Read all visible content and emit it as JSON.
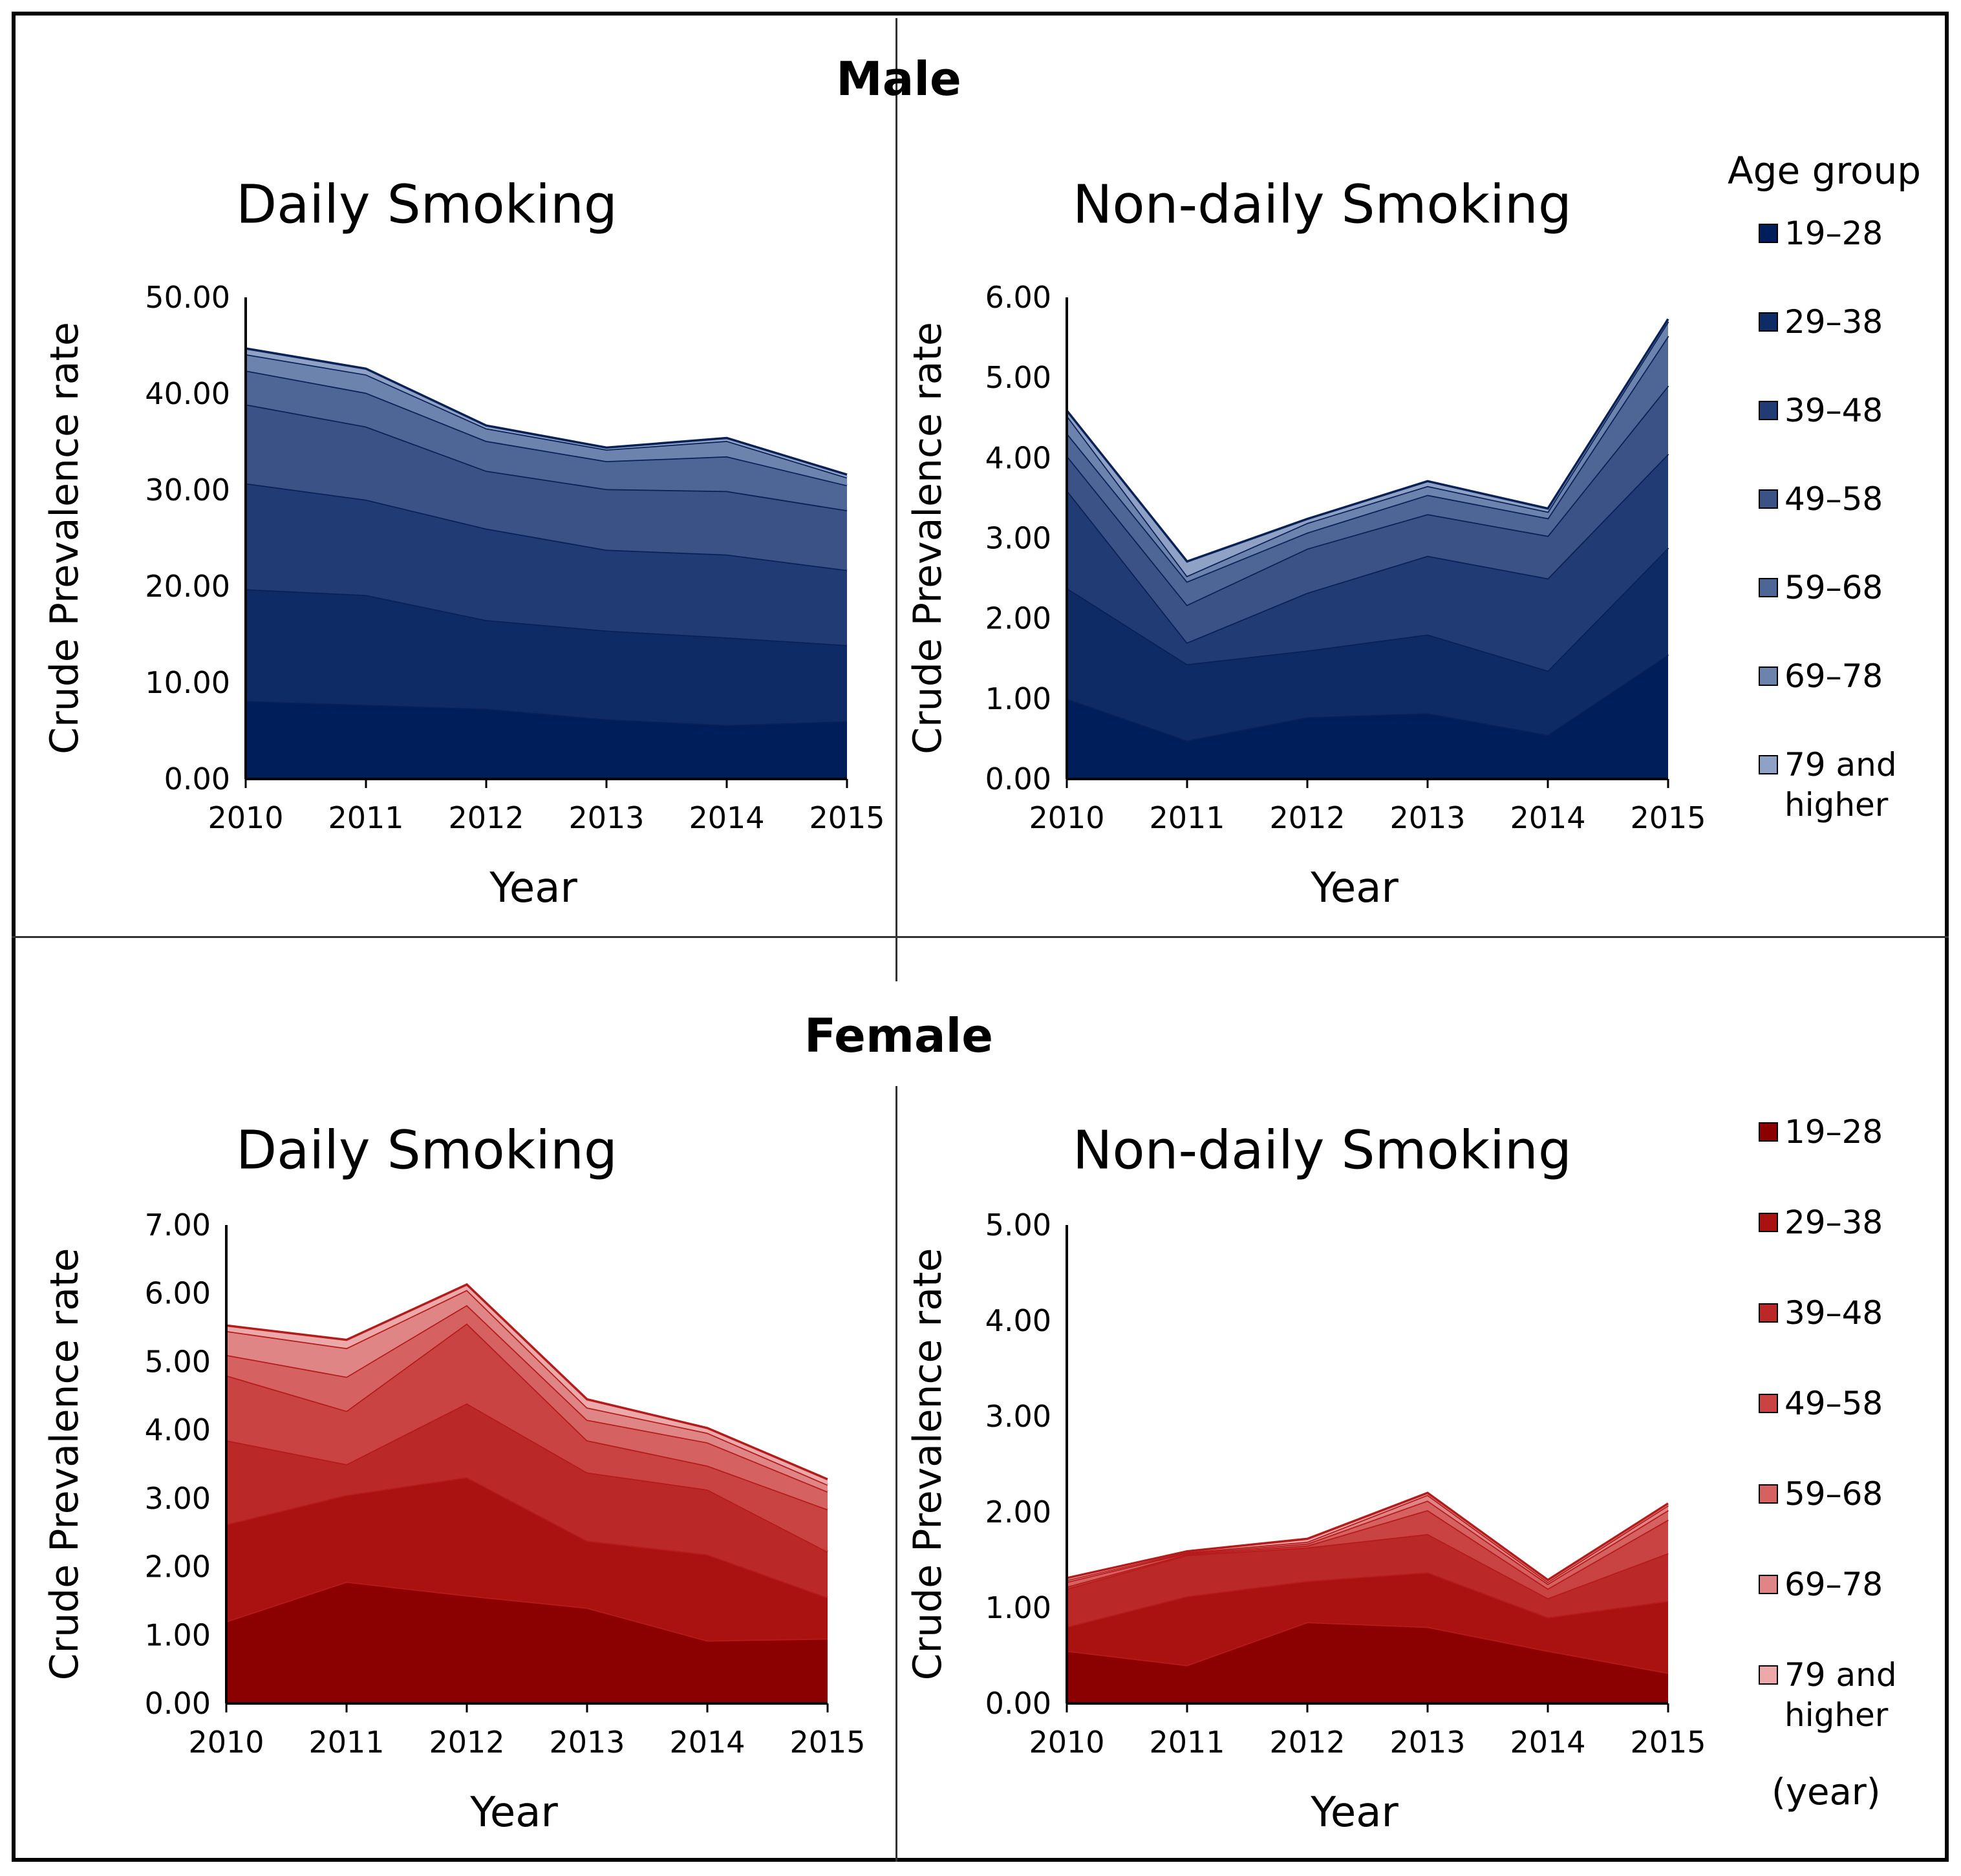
{
  "figure": {
    "male_title": "Male",
    "female_title": "Female",
    "legend_title": "Age group",
    "unit_note": "(year)"
  },
  "colors": {
    "male": [
      "#001E5A",
      "#0F2B66",
      "#213B74",
      "#3A5285",
      "#4D6695",
      "#6C83AE",
      "#8FA2C6"
    ],
    "male_lines": "#0A2157",
    "female": [
      "#8B0000",
      "#AA1212",
      "#BB2828",
      "#C94343",
      "#D66161",
      "#E08585",
      "#EBA9A9"
    ],
    "female_lines": "#B51B1B"
  },
  "legend": {
    "groups": [
      "19–28",
      "29–38",
      "39–48",
      "49–58",
      "59–68",
      "69–78",
      "79 and higher"
    ]
  },
  "chart_data": [
    {
      "id": "male_daily",
      "type": "area",
      "stacked": true,
      "title": "Daily Smoking",
      "xlabel": "Year",
      "ylabel": "Crude Prevalence rate",
      "categories": [
        "2010",
        "2011",
        "2012",
        "2013",
        "2014",
        "2015"
      ],
      "ylim": [
        0,
        50
      ],
      "yticks": [
        "0.00",
        "10.00",
        "20.00",
        "30.00",
        "40.00",
        "50.00"
      ],
      "series": [
        {
          "name": "19–28",
          "values": [
            8.1,
            7.7,
            7.3,
            6.2,
            5.6,
            6.0
          ]
        },
        {
          "name": "29–38",
          "values": [
            11.6,
            11.4,
            9.2,
            9.2,
            9.1,
            7.9
          ]
        },
        {
          "name": "39–48",
          "values": [
            11.0,
            9.9,
            9.5,
            8.4,
            8.6,
            7.8
          ]
        },
        {
          "name": "49–58",
          "values": [
            8.2,
            7.6,
            6.0,
            6.3,
            6.6,
            6.2
          ]
        },
        {
          "name": "59–68",
          "values": [
            3.5,
            3.5,
            3.1,
            2.9,
            3.6,
            2.6
          ]
        },
        {
          "name": "69–78",
          "values": [
            1.7,
            1.9,
            1.3,
            1.2,
            1.6,
            0.8
          ]
        },
        {
          "name": "79 and higher",
          "values": [
            0.6,
            0.6,
            0.3,
            0.2,
            0.3,
            0.3
          ]
        }
      ]
    },
    {
      "id": "male_nondaily",
      "type": "area",
      "stacked": true,
      "title": "Non-daily Smoking",
      "xlabel": "Year",
      "ylabel": "Crude Prevalence rate",
      "categories": [
        "2010",
        "2011",
        "2012",
        "2013",
        "2014",
        "2015"
      ],
      "ylim": [
        0,
        6
      ],
      "yticks": [
        "0.00",
        "1.00",
        "2.00",
        "3.00",
        "4.00",
        "5.00",
        "6.00"
      ],
      "series": [
        {
          "name": "19–28",
          "values": [
            1.0,
            0.48,
            0.77,
            0.82,
            0.55,
            1.55
          ]
        },
        {
          "name": "29–38",
          "values": [
            1.38,
            0.95,
            0.83,
            0.98,
            0.8,
            1.33
          ]
        },
        {
          "name": "39–48",
          "values": [
            1.22,
            0.27,
            0.72,
            0.98,
            1.15,
            1.17
          ]
        },
        {
          "name": "49–58",
          "values": [
            0.43,
            0.47,
            0.55,
            0.52,
            0.53,
            0.85
          ]
        },
        {
          "name": "59–68",
          "values": [
            0.28,
            0.29,
            0.2,
            0.24,
            0.22,
            0.62
          ]
        },
        {
          "name": "69–78",
          "values": [
            0.22,
            0.07,
            0.12,
            0.11,
            0.08,
            0.18
          ]
        },
        {
          "name": "79 and higher",
          "values": [
            0.06,
            0.18,
            0.05,
            0.06,
            0.04,
            0.03
          ]
        }
      ]
    },
    {
      "id": "female_daily",
      "type": "area",
      "stacked": true,
      "title": "Daily Smoking",
      "xlabel": "Year",
      "ylabel": "Crude Prevalence rate",
      "categories": [
        "2010",
        "2011",
        "2012",
        "2013",
        "2014",
        "2015"
      ],
      "ylim": [
        0,
        7
      ],
      "yticks": [
        "0.00",
        "1.00",
        "2.00",
        "3.00",
        "4.00",
        "5.00",
        "6.00",
        "7.00"
      ],
      "series": [
        {
          "name": "19–28",
          "values": [
            1.2,
            1.78,
            1.58,
            1.4,
            0.92,
            0.95
          ]
        },
        {
          "name": "29–38",
          "values": [
            1.42,
            1.27,
            1.73,
            0.98,
            1.26,
            0.6
          ]
        },
        {
          "name": "39–48",
          "values": [
            1.23,
            0.45,
            1.08,
            1.0,
            0.95,
            0.67
          ]
        },
        {
          "name": "49–58",
          "values": [
            0.95,
            0.78,
            1.17,
            0.47,
            0.35,
            0.62
          ]
        },
        {
          "name": "59–68",
          "values": [
            0.3,
            0.5,
            0.27,
            0.3,
            0.34,
            0.26
          ]
        },
        {
          "name": "69–78",
          "values": [
            0.35,
            0.42,
            0.22,
            0.18,
            0.14,
            0.1
          ]
        },
        {
          "name": "79 and higher",
          "values": [
            0.08,
            0.12,
            0.08,
            0.12,
            0.07,
            0.08
          ]
        }
      ]
    },
    {
      "id": "female_nondaily",
      "type": "area",
      "stacked": true,
      "title": "Non-daily Smoking",
      "xlabel": "Year",
      "ylabel": "Crude Prevalence rate",
      "categories": [
        "2010",
        "2011",
        "2012",
        "2013",
        "2014",
        "2015"
      ],
      "ylim": [
        0,
        5
      ],
      "yticks": [
        "0.00",
        "1.00",
        "2.00",
        "3.00",
        "4.00",
        "5.00"
      ],
      "series": [
        {
          "name": "19–28",
          "values": [
            0.55,
            0.4,
            0.85,
            0.8,
            0.55,
            0.32
          ]
        },
        {
          "name": "29–38",
          "values": [
            0.25,
            0.72,
            0.43,
            0.57,
            0.35,
            0.75
          ]
        },
        {
          "name": "39–48",
          "values": [
            0.4,
            0.43,
            0.35,
            0.4,
            0.2,
            0.5
          ]
        },
        {
          "name": "49–58",
          "values": [
            0.02,
            0.01,
            0.02,
            0.25,
            0.1,
            0.35
          ]
        },
        {
          "name": "59–68",
          "values": [
            0.05,
            0.01,
            0.02,
            0.1,
            0.05,
            0.1
          ]
        },
        {
          "name": "69–78",
          "values": [
            0.02,
            0.01,
            0.02,
            0.06,
            0.02,
            0.05
          ]
        },
        {
          "name": "79 and higher",
          "values": [
            0.02,
            0.01,
            0.03,
            0.02,
            0.02,
            0.02
          ]
        }
      ]
    }
  ]
}
